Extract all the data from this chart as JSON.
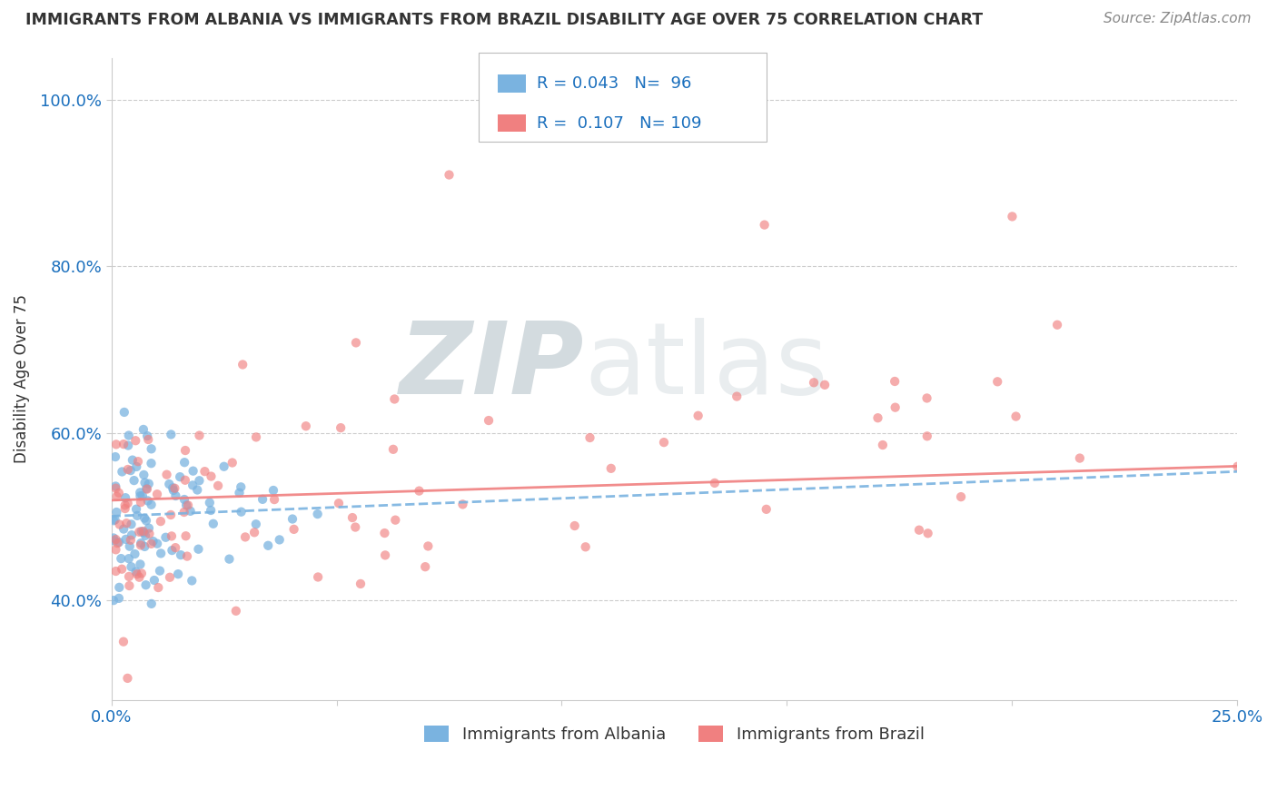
{
  "title": "IMMIGRANTS FROM ALBANIA VS IMMIGRANTS FROM BRAZIL DISABILITY AGE OVER 75 CORRELATION CHART",
  "source": "Source: ZipAtlas.com",
  "ylabel": "Disability Age Over 75",
  "xlim": [
    0.0,
    0.25
  ],
  "ylim": [
    0.28,
    1.05
  ],
  "yticks": [
    0.4,
    0.6,
    0.8,
    1.0
  ],
  "ytick_labels": [
    "40.0%",
    "60.0%",
    "80.0%",
    "100.0%"
  ],
  "xtick_positions": [
    0.0,
    0.05,
    0.1,
    0.15,
    0.2,
    0.25
  ],
  "xtick_labels": [
    "0.0%",
    "",
    "",
    "",
    "",
    "25.0%"
  ],
  "albania_color": "#7ab3e0",
  "brazil_color": "#f08080",
  "albania_R": "0.043",
  "albania_N": "96",
  "brazil_R": "0.107",
  "brazil_N": "109",
  "watermark_zip": "ZIP",
  "watermark_atlas": "atlas",
  "legend_label_albania": "Immigrants from Albania",
  "legend_label_brazil": "Immigrants from Brazil",
  "background_color": "#ffffff",
  "grid_color": "#cccccc",
  "axis_color": "#cccccc",
  "title_color": "#333333",
  "source_color": "#888888",
  "legend_text_color": "#1a6fbd",
  "tick_color": "#1a6fbd",
  "albania_line_style": "--",
  "brazil_line_style": "-"
}
